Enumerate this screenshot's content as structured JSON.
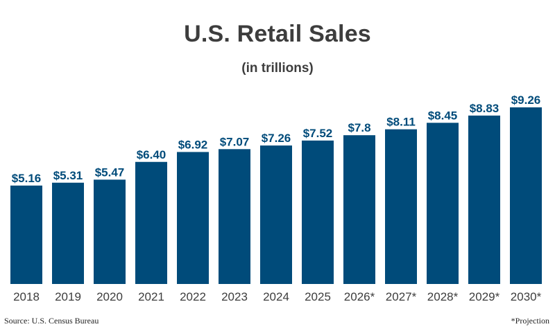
{
  "chart_data": {
    "type": "bar",
    "title": "U.S. Retail Sales",
    "subtitle": "(in trillions)",
    "categories": [
      "2018",
      "2019",
      "2020",
      "2021",
      "2022",
      "2023",
      "2024",
      "2025",
      "2026*",
      "2027*",
      "2028*",
      "2029*",
      "2030*"
    ],
    "values": [
      5.16,
      5.31,
      5.47,
      6.4,
      6.92,
      7.07,
      7.26,
      7.52,
      7.8,
      8.11,
      8.45,
      8.83,
      9.26
    ],
    "value_labels": [
      "$5.16",
      "$5.31",
      "$5.47",
      "$6.40",
      "$6.92",
      "$7.07",
      "$7.26",
      "$7.52",
      "$7.8",
      "$8.11",
      "$8.45",
      "$8.83",
      "$9.26"
    ],
    "ylim": [
      0,
      9.26
    ],
    "xlabel": "",
    "ylabel": "",
    "grid": false,
    "legend": "none",
    "bar_color": "#004b7a",
    "label_color": "#004b7a",
    "tick_color": "#3d3d3d"
  },
  "footer": {
    "source": "Source: U.S. Census Bureau",
    "note": "*Projection"
  }
}
